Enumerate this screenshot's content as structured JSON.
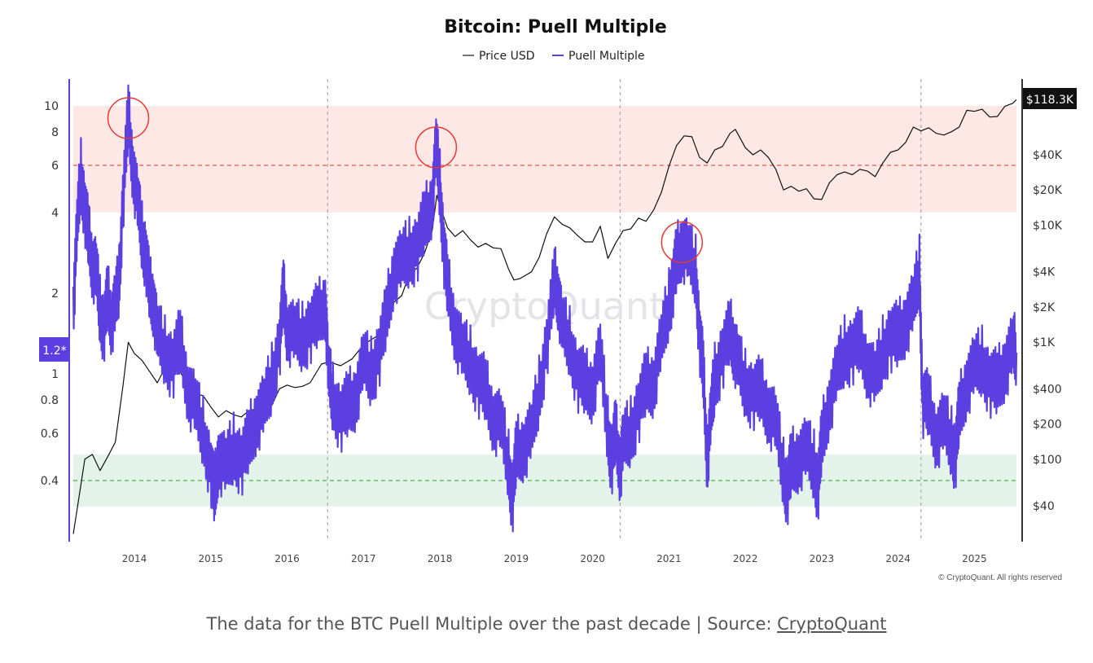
{
  "chart_data": {
    "type": "line",
    "title": "Bitcoin: Puell Multiple",
    "legend": [
      "Price USD",
      "Puell Multiple"
    ],
    "legend_placement": "top-center",
    "watermark": "CryptoQuant",
    "copyright": "© CryptoQuant. All rights reserved",
    "current_price_label": "$118.3K",
    "current_puell_label": "1.2*",
    "x_axis": {
      "range": [
        2013.2,
        2025.55
      ],
      "ticks": [
        "2014",
        "2015",
        "2016",
        "2017",
        "2018",
        "2019",
        "2020",
        "2021",
        "2022",
        "2023",
        "2024",
        "2025"
      ]
    },
    "y_left": {
      "scale": "log",
      "range": [
        0.3,
        11
      ],
      "ticks": [
        "10",
        "8",
        "6",
        "4",
        "2",
        "1",
        "0.8",
        "0.6",
        "0.4"
      ]
    },
    "y_right": {
      "scale": "log",
      "range": [
        20,
        150000
      ],
      "ticks": [
        "$40K",
        "$20K",
        "$10K",
        "$4K",
        "$2K",
        "$1K",
        "$400",
        "$200",
        "$100",
        "$40"
      ]
    },
    "zones": {
      "red_band": [
        4,
        10
      ],
      "red_line": 6,
      "green_band": [
        0.32,
        0.5
      ],
      "green_line": 0.4
    },
    "halvings": [
      2016.53,
      2020.36,
      2024.3
    ],
    "highlighted_peaks": [
      {
        "date": 2013.92,
        "puell": 9
      },
      {
        "date": 2017.95,
        "puell": 7
      },
      {
        "date": 2021.17,
        "puell": 3.1
      }
    ],
    "series": [
      {
        "name": "Price USD",
        "axis": "right",
        "color": "#111111",
        "points": [
          [
            2013.2,
            23
          ],
          [
            2013.28,
            50
          ],
          [
            2013.35,
            100
          ],
          [
            2013.45,
            110
          ],
          [
            2013.55,
            80
          ],
          [
            2013.65,
            105
          ],
          [
            2013.75,
            140
          ],
          [
            2013.85,
            420
          ],
          [
            2013.92,
            1000
          ],
          [
            2014.0,
            800
          ],
          [
            2014.1,
            700
          ],
          [
            2014.2,
            560
          ],
          [
            2014.3,
            450
          ],
          [
            2014.4,
            600
          ],
          [
            2014.5,
            620
          ],
          [
            2014.6,
            560
          ],
          [
            2014.7,
            420
          ],
          [
            2014.8,
            360
          ],
          [
            2014.9,
            350
          ],
          [
            2015.0,
            280
          ],
          [
            2015.1,
            230
          ],
          [
            2015.2,
            260
          ],
          [
            2015.3,
            240
          ],
          [
            2015.4,
            230
          ],
          [
            2015.5,
            260
          ],
          [
            2015.6,
            270
          ],
          [
            2015.7,
            235
          ],
          [
            2015.8,
            290
          ],
          [
            2015.9,
            400
          ],
          [
            2016.0,
            430
          ],
          [
            2016.1,
            410
          ],
          [
            2016.2,
            420
          ],
          [
            2016.3,
            450
          ],
          [
            2016.45,
            650
          ],
          [
            2016.55,
            680
          ],
          [
            2016.7,
            630
          ],
          [
            2016.85,
            720
          ],
          [
            2017.0,
            950
          ],
          [
            2017.1,
            1050
          ],
          [
            2017.2,
            1150
          ],
          [
            2017.3,
            1300
          ],
          [
            2017.4,
            2200
          ],
          [
            2017.5,
            2500
          ],
          [
            2017.6,
            3800
          ],
          [
            2017.7,
            4300
          ],
          [
            2017.8,
            5800
          ],
          [
            2017.9,
            9000
          ],
          [
            2017.96,
            18000
          ],
          [
            2018.02,
            13500
          ],
          [
            2018.1,
            9500
          ],
          [
            2018.2,
            8000
          ],
          [
            2018.3,
            9000
          ],
          [
            2018.4,
            7500
          ],
          [
            2018.5,
            6500
          ],
          [
            2018.6,
            7000
          ],
          [
            2018.7,
            6400
          ],
          [
            2018.8,
            6300
          ],
          [
            2018.9,
            4200
          ],
          [
            2018.97,
            3400
          ],
          [
            2019.05,
            3500
          ],
          [
            2019.2,
            4000
          ],
          [
            2019.3,
            5300
          ],
          [
            2019.4,
            8500
          ],
          [
            2019.5,
            11800
          ],
          [
            2019.6,
            10200
          ],
          [
            2019.7,
            9500
          ],
          [
            2019.8,
            8200
          ],
          [
            2019.9,
            7200
          ],
          [
            2020.0,
            7200
          ],
          [
            2020.1,
            9800
          ],
          [
            2020.2,
            5200
          ],
          [
            2020.3,
            7000
          ],
          [
            2020.4,
            9000
          ],
          [
            2020.5,
            9300
          ],
          [
            2020.6,
            11500
          ],
          [
            2020.7,
            10800
          ],
          [
            2020.8,
            13500
          ],
          [
            2020.9,
            19000
          ],
          [
            2021.0,
            32000
          ],
          [
            2021.1,
            48000
          ],
          [
            2021.2,
            58000
          ],
          [
            2021.3,
            57000
          ],
          [
            2021.4,
            38000
          ],
          [
            2021.5,
            34000
          ],
          [
            2021.6,
            44000
          ],
          [
            2021.7,
            47000
          ],
          [
            2021.8,
            61000
          ],
          [
            2021.87,
            66000
          ],
          [
            2022.0,
            46000
          ],
          [
            2022.1,
            40000
          ],
          [
            2022.2,
            44000
          ],
          [
            2022.3,
            38000
          ],
          [
            2022.4,
            30000
          ],
          [
            2022.5,
            20000
          ],
          [
            2022.6,
            21500
          ],
          [
            2022.7,
            19500
          ],
          [
            2022.8,
            20500
          ],
          [
            2022.9,
            16800
          ],
          [
            2023.0,
            16600
          ],
          [
            2023.1,
            23000
          ],
          [
            2023.2,
            27000
          ],
          [
            2023.3,
            28500
          ],
          [
            2023.4,
            27000
          ],
          [
            2023.5,
            30000
          ],
          [
            2023.6,
            29000
          ],
          [
            2023.7,
            26000
          ],
          [
            2023.8,
            34000
          ],
          [
            2023.9,
            42000
          ],
          [
            2024.0,
            44000
          ],
          [
            2024.1,
            51000
          ],
          [
            2024.2,
            69000
          ],
          [
            2024.3,
            64000
          ],
          [
            2024.4,
            68000
          ],
          [
            2024.5,
            61000
          ],
          [
            2024.6,
            59000
          ],
          [
            2024.7,
            63000
          ],
          [
            2024.8,
            69000
          ],
          [
            2024.9,
            96000
          ],
          [
            2025.0,
            94000
          ],
          [
            2025.1,
            98000
          ],
          [
            2025.2,
            84000
          ],
          [
            2025.3,
            85000
          ],
          [
            2025.4,
            104000
          ],
          [
            2025.5,
            110000
          ],
          [
            2025.55,
            118300
          ]
        ]
      },
      {
        "name": "Puell Multiple",
        "axis": "left",
        "color": "#5b3fe0",
        "points": [
          [
            2013.2,
            1.8
          ],
          [
            2013.25,
            3.5
          ],
          [
            2013.3,
            5.5
          ],
          [
            2013.35,
            4.2
          ],
          [
            2013.4,
            3.2
          ],
          [
            2013.45,
            2.6
          ],
          [
            2013.5,
            2.4
          ],
          [
            2013.55,
            1.7
          ],
          [
            2013.6,
            1.5
          ],
          [
            2013.65,
            1.9
          ],
          [
            2013.7,
            1.6
          ],
          [
            2013.75,
            1.8
          ],
          [
            2013.8,
            2.2
          ],
          [
            2013.85,
            4.5
          ],
          [
            2013.92,
            9.0
          ],
          [
            2013.98,
            6.0
          ],
          [
            2014.05,
            4.2
          ],
          [
            2014.1,
            3.2
          ],
          [
            2014.15,
            2.8
          ],
          [
            2014.2,
            2.0
          ],
          [
            2014.25,
            1.9
          ],
          [
            2014.3,
            1.4
          ],
          [
            2014.4,
            1.2
          ],
          [
            2014.5,
            1.1
          ],
          [
            2014.6,
            1.3
          ],
          [
            2014.7,
            0.9
          ],
          [
            2014.8,
            0.75
          ],
          [
            2014.9,
            0.6
          ],
          [
            2015.0,
            0.45
          ],
          [
            2015.05,
            0.35
          ],
          [
            2015.1,
            0.5
          ],
          [
            2015.2,
            0.45
          ],
          [
            2015.3,
            0.52
          ],
          [
            2015.4,
            0.48
          ],
          [
            2015.5,
            0.55
          ],
          [
            2015.6,
            0.7
          ],
          [
            2015.7,
            0.75
          ],
          [
            2015.8,
            0.95
          ],
          [
            2015.9,
            1.3
          ],
          [
            2015.95,
            2.0
          ],
          [
            2016.0,
            1.5
          ],
          [
            2016.1,
            1.4
          ],
          [
            2016.2,
            1.35
          ],
          [
            2016.3,
            1.5
          ],
          [
            2016.4,
            1.6
          ],
          [
            2016.5,
            1.9
          ],
          [
            2016.54,
            1.0
          ],
          [
            2016.6,
            0.8
          ],
          [
            2016.7,
            0.7
          ],
          [
            2016.8,
            0.75
          ],
          [
            2016.9,
            0.85
          ],
          [
            2017.0,
            1.1
          ],
          [
            2017.1,
            1.0
          ],
          [
            2017.2,
            1.2
          ],
          [
            2017.3,
            1.6
          ],
          [
            2017.4,
            2.5
          ],
          [
            2017.5,
            2.6
          ],
          [
            2017.6,
            2.8
          ],
          [
            2017.7,
            3.0
          ],
          [
            2017.8,
            3.6
          ],
          [
            2017.9,
            4.5
          ],
          [
            2017.95,
            7.0
          ],
          [
            2018.0,
            5.0
          ],
          [
            2018.05,
            3.0
          ],
          [
            2018.1,
            2.1
          ],
          [
            2018.2,
            1.5
          ],
          [
            2018.3,
            1.2
          ],
          [
            2018.4,
            1.1
          ],
          [
            2018.5,
            0.95
          ],
          [
            2018.6,
            0.85
          ],
          [
            2018.7,
            0.7
          ],
          [
            2018.8,
            0.65
          ],
          [
            2018.9,
            0.45
          ],
          [
            2018.95,
            0.34
          ],
          [
            2019.0,
            0.5
          ],
          [
            2019.1,
            0.55
          ],
          [
            2019.2,
            0.6
          ],
          [
            2019.3,
            0.85
          ],
          [
            2019.4,
            1.3
          ],
          [
            2019.5,
            2.2
          ],
          [
            2019.55,
            2.0
          ],
          [
            2019.6,
            1.5
          ],
          [
            2019.7,
            1.3
          ],
          [
            2019.8,
            1.0
          ],
          [
            2019.9,
            0.9
          ],
          [
            2020.0,
            0.9
          ],
          [
            2020.1,
            1.2
          ],
          [
            2020.2,
            0.6
          ],
          [
            2020.25,
            0.48
          ],
          [
            2020.3,
            0.6
          ],
          [
            2020.36,
            0.45
          ],
          [
            2020.4,
            0.55
          ],
          [
            2020.5,
            0.6
          ],
          [
            2020.6,
            0.75
          ],
          [
            2020.7,
            0.9
          ],
          [
            2020.8,
            0.95
          ],
          [
            2020.9,
            1.3
          ],
          [
            2021.0,
            1.8
          ],
          [
            2021.05,
            2.2
          ],
          [
            2021.1,
            2.6
          ],
          [
            2021.17,
            3.1
          ],
          [
            2021.25,
            2.8
          ],
          [
            2021.35,
            2.4
          ],
          [
            2021.4,
            1.4
          ],
          [
            2021.45,
            1.0
          ],
          [
            2021.5,
            0.48
          ],
          [
            2021.55,
            0.7
          ],
          [
            2021.6,
            0.95
          ],
          [
            2021.7,
            1.2
          ],
          [
            2021.8,
            1.4
          ],
          [
            2021.85,
            1.3
          ],
          [
            2021.9,
            1.1
          ],
          [
            2022.0,
            0.9
          ],
          [
            2022.1,
            0.85
          ],
          [
            2022.2,
            0.85
          ],
          [
            2022.3,
            0.75
          ],
          [
            2022.4,
            0.65
          ],
          [
            2022.5,
            0.42
          ],
          [
            2022.55,
            0.37
          ],
          [
            2022.6,
            0.45
          ],
          [
            2022.7,
            0.5
          ],
          [
            2022.8,
            0.52
          ],
          [
            2022.9,
            0.45
          ],
          [
            2022.95,
            0.38
          ],
          [
            2023.0,
            0.55
          ],
          [
            2023.1,
            0.8
          ],
          [
            2023.2,
            1.0
          ],
          [
            2023.3,
            1.2
          ],
          [
            2023.4,
            1.25
          ],
          [
            2023.5,
            1.3
          ],
          [
            2023.6,
            1.1
          ],
          [
            2023.7,
            0.95
          ],
          [
            2023.8,
            1.2
          ],
          [
            2023.9,
            1.4
          ],
          [
            2024.0,
            1.35
          ],
          [
            2024.1,
            1.6
          ],
          [
            2024.2,
            1.8
          ],
          [
            2024.28,
            2.4
          ],
          [
            2024.32,
            0.8
          ],
          [
            2024.4,
            0.75
          ],
          [
            2024.5,
            0.6
          ],
          [
            2024.6,
            0.65
          ],
          [
            2024.7,
            0.55
          ],
          [
            2024.75,
            0.5
          ],
          [
            2024.8,
            0.7
          ],
          [
            2024.9,
            0.95
          ],
          [
            2025.0,
            1.05
          ],
          [
            2025.1,
            1.1
          ],
          [
            2025.2,
            0.95
          ],
          [
            2025.3,
            0.9
          ],
          [
            2025.4,
            1.1
          ],
          [
            2025.5,
            1.25
          ],
          [
            2025.55,
            1.2
          ]
        ]
      }
    ]
  },
  "caption": {
    "text": "The data for the BTC Puell Multiple over the past decade | Source: ",
    "link": "CryptoQuant"
  }
}
